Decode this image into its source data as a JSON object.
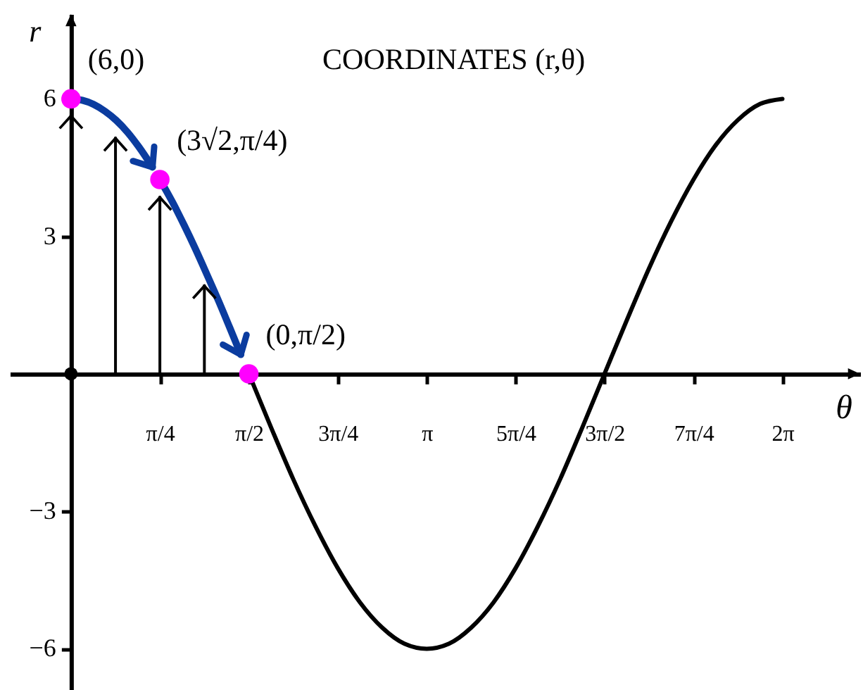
{
  "chart_data": {
    "type": "line",
    "title": "COORDINATES (r,θ)",
    "xlabel": "θ",
    "ylabel": "r",
    "xlim": [
      -0.54,
      6.97
    ],
    "ylim": [
      -6.9,
      7.85
    ],
    "xticks": [
      {
        "value": 0.785,
        "label": "π/4"
      },
      {
        "value": 1.571,
        "label": "π/2"
      },
      {
        "value": 2.356,
        "label": "3π/4"
      },
      {
        "value": 3.142,
        "label": "π"
      },
      {
        "value": 3.927,
        "label": "5π/4"
      },
      {
        "value": 4.712,
        "label": "3π/2"
      },
      {
        "value": 5.498,
        "label": "7π/4"
      },
      {
        "value": 6.283,
        "label": "2π"
      }
    ],
    "yticks": [
      -6,
      -3,
      3,
      6
    ],
    "series": [
      {
        "color": "#000000",
        "x": [
          1.571,
          1.767,
          1.963,
          2.16,
          2.356,
          2.553,
          2.749,
          2.945,
          3.142,
          3.338,
          3.534,
          3.731,
          3.927,
          4.123,
          4.32,
          4.516,
          4.712,
          4.909,
          5.105,
          5.301,
          5.498,
          5.694,
          5.89,
          6.087,
          6.283
        ],
        "values": [
          0,
          -1.17,
          -2.3,
          -3.33,
          -4.24,
          -4.99,
          -5.54,
          -5.89,
          -6,
          -5.89,
          -5.54,
          -4.99,
          -4.24,
          -3.33,
          -2.3,
          -1.17,
          0,
          1.17,
          2.3,
          3.33,
          4.24,
          4.99,
          5.54,
          5.89,
          6
        ]
      },
      {
        "color": "#0b3c9f",
        "x": [
          0,
          0.1,
          0.2,
          0.3,
          0.4,
          0.5,
          0.6,
          0.72
        ],
        "values": [
          6,
          5.97,
          5.88,
          5.73,
          5.53,
          5.27,
          4.95,
          4.51
        ]
      },
      {
        "color": "#0b3c9f",
        "x": [
          0.785,
          0.9,
          1.0,
          1.1,
          1.2,
          1.3,
          1.4,
          1.5
        ],
        "values": [
          4.24,
          3.73,
          3.24,
          2.72,
          2.17,
          1.61,
          1.02,
          0.42
        ]
      },
      {
        "type": "lollipop",
        "color": "#000000",
        "marker": "triangle",
        "x": [
          0,
          0.393,
          0.785,
          1.178
        ],
        "values": [
          5.5,
          5.01,
          3.72,
          1.79
        ]
      },
      {
        "type": "scatter",
        "color": "#ff00ff",
        "marker": "circle",
        "x": [
          0,
          0.785,
          1.571
        ],
        "values": [
          6,
          4.24,
          0
        ]
      },
      {
        "type": "scatter",
        "color": "#000000",
        "marker": "circle",
        "x": [
          0
        ],
        "values": [
          0
        ]
      }
    ],
    "annotations": [
      {
        "text": "(6,0)",
        "x": 0,
        "y": 6
      },
      {
        "text": "(3√2,π/4)",
        "x": 0.785,
        "y": 4.24
      },
      {
        "text": "(0,π/2)",
        "x": 1.571,
        "y": 0
      }
    ]
  }
}
